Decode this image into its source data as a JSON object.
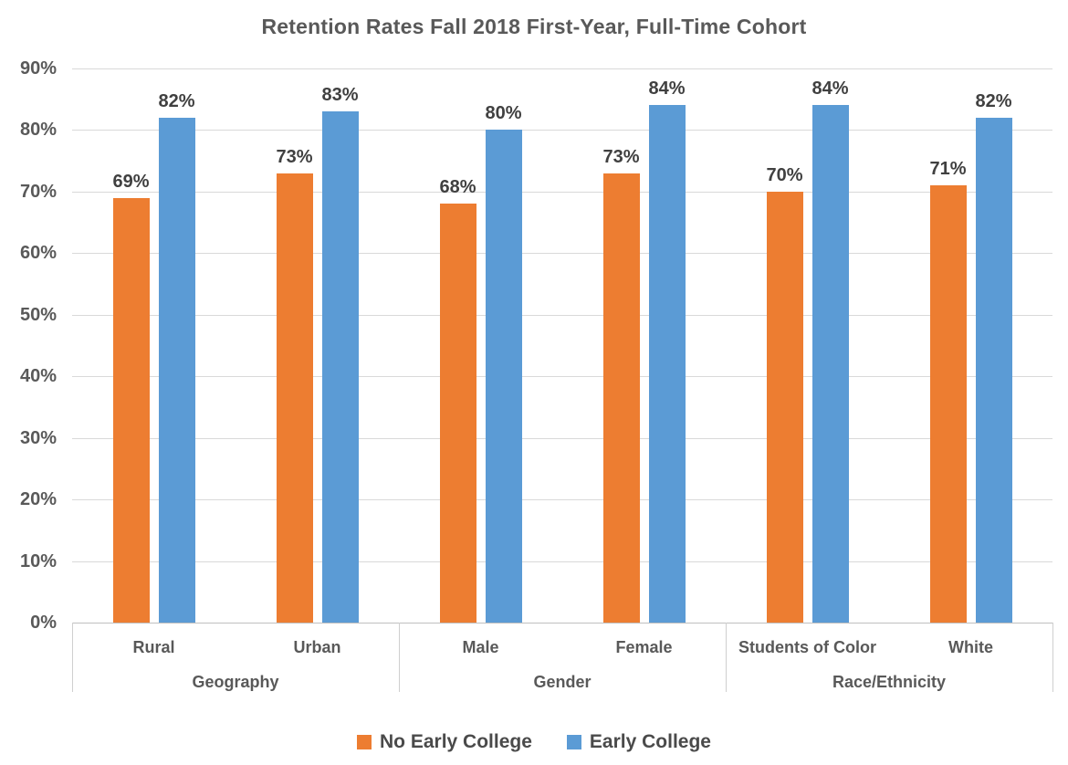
{
  "chart_data": {
    "type": "bar",
    "title": "Retention Rates Fall 2018 First-Year, Full-Time Cohort",
    "categories": [
      "Rural",
      "Urban",
      "Male",
      "Female",
      "Students of Color",
      "White"
    ],
    "groups": [
      {
        "label": "Geography",
        "categories": [
          "Rural",
          "Urban"
        ]
      },
      {
        "label": "Gender",
        "categories": [
          "Male",
          "Female"
        ]
      },
      {
        "label": "Race/Ethnicity",
        "categories": [
          "Students of Color",
          "White"
        ]
      }
    ],
    "series": [
      {
        "name": "No Early College",
        "color": "#ED7D31",
        "values": [
          69,
          73,
          68,
          73,
          70,
          71
        ],
        "labels": [
          "69%",
          "73%",
          "68%",
          "73%",
          "70%",
          "71%"
        ]
      },
      {
        "name": "Early College",
        "color": "#5B9BD5",
        "values": [
          82,
          83,
          80,
          84,
          84,
          82
        ],
        "labels": [
          "82%",
          "83%",
          "80%",
          "84%",
          "84%",
          "82%"
        ]
      }
    ],
    "y_axis": {
      "min": 0,
      "max": 90,
      "step": 10,
      "tick_labels": [
        "0%",
        "10%",
        "20%",
        "30%",
        "40%",
        "50%",
        "60%",
        "70%",
        "80%",
        "90%"
      ]
    },
    "grid": true,
    "legend_position": "bottom",
    "colors": {
      "gridline": "#d9d9d9",
      "axis_line": "#bfbfbf",
      "divider": "#cfcfcf",
      "title_text": "#595959",
      "tick_text": "#595959",
      "data_label_text": "#404040",
      "legend_text": "#4a4a4a",
      "background": "#ffffff"
    }
  }
}
